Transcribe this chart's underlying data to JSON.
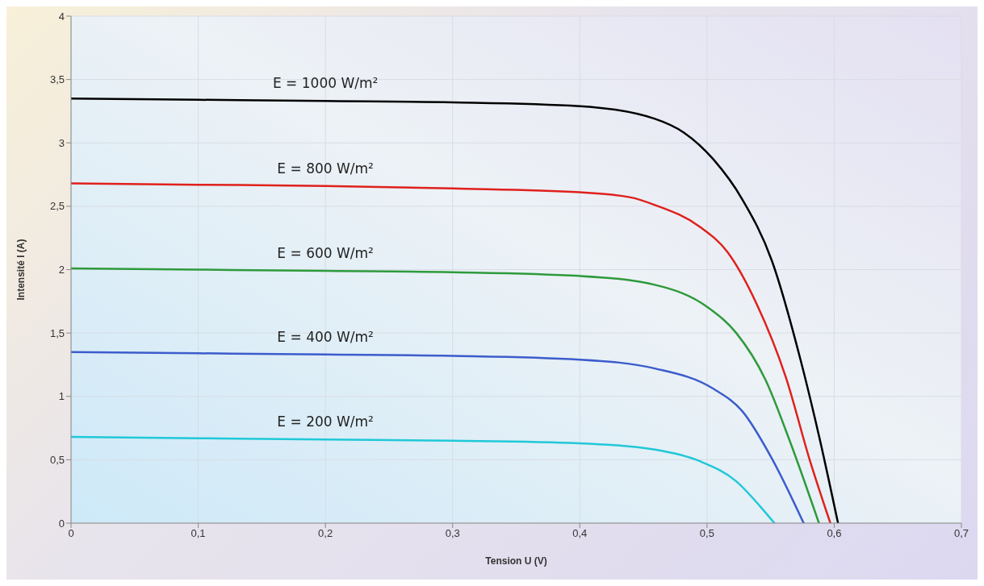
{
  "chart_data": {
    "type": "line",
    "xlabel": "Tension U (V)",
    "ylabel": "Intensité I (A)",
    "xlim": [
      0,
      0.7
    ],
    "xticks": [
      0,
      {
        "value": 0.1,
        "label": "0,1"
      },
      {
        "value": 0.2,
        "label": "0,2"
      },
      {
        "value": 0.3,
        "label": "0,3"
      },
      {
        "value": 0.4,
        "label": "0,4"
      },
      {
        "value": 0.5,
        "label": "0,5"
      },
      {
        "value": 0.6,
        "label": "0,6"
      },
      {
        "value": 0.7,
        "label": "0,7"
      }
    ],
    "ylim": [
      0,
      4
    ],
    "yticks": [
      0,
      {
        "value": 0.5,
        "label": "0,5"
      },
      1,
      {
        "value": 1.5,
        "label": "1,5"
      },
      2,
      {
        "value": 2.5,
        "label": "2,5"
      },
      3,
      {
        "value": 3.5,
        "label": "3,5"
      },
      4
    ],
    "grid": true,
    "legend": false,
    "marker": "none",
    "line_style": "solid",
    "series": [
      {
        "name": "E = 1000 W/m²",
        "color": "#000000",
        "x": [
          0,
          0.1,
          0.2,
          0.3,
          0.4,
          0.459,
          0.482,
          0.505,
          0.528,
          0.551,
          0.574,
          0.588,
          0.603
        ],
        "values": [
          3.35,
          3.34,
          3.33,
          3.32,
          3.29,
          3.19,
          3.08,
          2.87,
          2.55,
          2.07,
          1.27,
          0.69,
          0
        ]
      },
      {
        "name": "E = 800 W/m²",
        "color": "#e0201c",
        "x": [
          0,
          0.1,
          0.2,
          0.3,
          0.4,
          0.44,
          0.459,
          0.494,
          0.516,
          0.539,
          0.562,
          0.581,
          0.597
        ],
        "values": [
          2.68,
          2.67,
          2.66,
          2.64,
          2.61,
          2.57,
          2.51,
          2.34,
          2.14,
          1.73,
          1.15,
          0.49,
          0
        ]
      },
      {
        "name": "E = 600 W/m²",
        "color": "#2e9a3c",
        "x": [
          0,
          0.1,
          0.2,
          0.3,
          0.4,
          0.459,
          0.501,
          0.523,
          0.546,
          0.565,
          0.588
        ],
        "values": [
          2.01,
          2.0,
          1.99,
          1.98,
          1.95,
          1.88,
          1.7,
          1.5,
          1.13,
          0.65,
          0
        ]
      },
      {
        "name": "E = 400 W/m²",
        "color": "#3c5ccc",
        "x": [
          0,
          0.1,
          0.2,
          0.3,
          0.4,
          0.459,
          0.505,
          0.528,
          0.551,
          0.576
        ],
        "values": [
          1.35,
          1.34,
          1.33,
          1.32,
          1.29,
          1.22,
          1.06,
          0.88,
          0.51,
          0
        ]
      },
      {
        "name": "E = 200 W/m²",
        "color": "#20c8d8",
        "x": [
          0,
          0.1,
          0.2,
          0.3,
          0.4,
          0.459,
          0.494,
          0.523,
          0.542,
          0.553
        ],
        "values": [
          0.68,
          0.67,
          0.66,
          0.65,
          0.63,
          0.58,
          0.49,
          0.33,
          0.13,
          0
        ]
      }
    ]
  }
}
